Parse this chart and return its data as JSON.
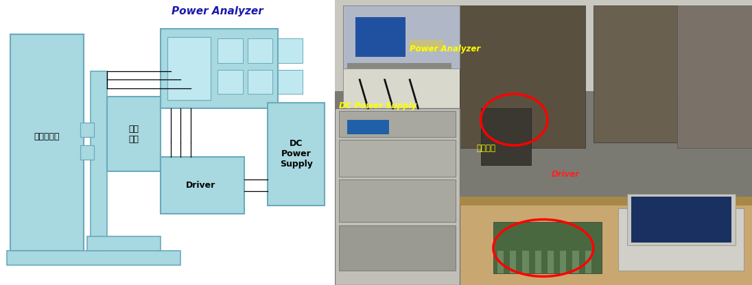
{
  "bg_color": "#ffffff",
  "diagram": {
    "light_blue": "#a8d8e0",
    "inner_blue": "#c0e8f0",
    "dark_outline": "#6aaabb",
    "power_analyzer_label": "Power Analyzer",
    "power_analyzer_label_color": "#1a1aaa",
    "burha_label": "부하시험기",
    "gudong_label": "구동\n모터",
    "driver_label": "Driver",
    "dc_supply_label": "DC\nPower\nSupply"
  },
  "photo_labels": {
    "power_analyzer": "Power Analyzer",
    "dc_power_supply": "DC Power Supply",
    "gudong_motor": "구동모터",
    "driver": "Driver"
  },
  "photo_label_color_yellow": "#FFFF00",
  "photo_label_color_red": "#FF2020",
  "photo_label_color_orange": "#FFA500"
}
